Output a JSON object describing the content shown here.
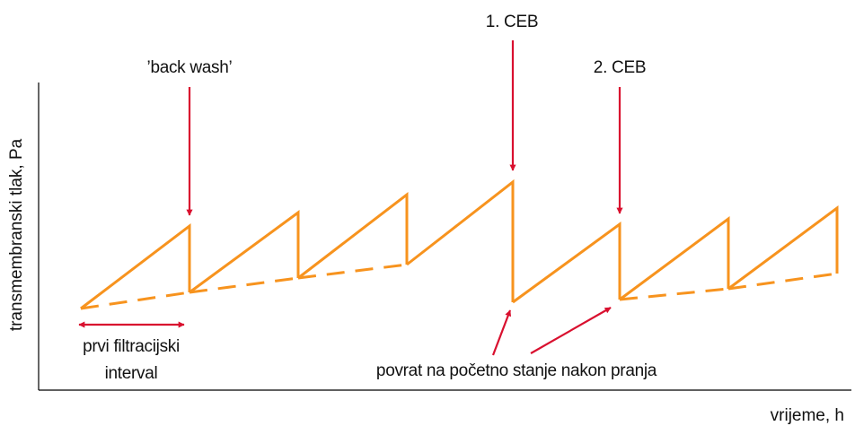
{
  "axes": {
    "y_label": "transmembranski tlak, Pa",
    "x_label": "vrijeme, h"
  },
  "annotations": {
    "backwash": "’back wash’",
    "ceb1": "1. CEB",
    "ceb2": "2. CEB",
    "interval_line1": "prvi filtracijski",
    "interval_line2": "interval",
    "recovery": "povrat na početno stanje nakon pranja"
  },
  "colors": {
    "curve": "#f7931e",
    "arrow": "#d9102f",
    "axis": "#000000",
    "text": "#111111"
  }
}
